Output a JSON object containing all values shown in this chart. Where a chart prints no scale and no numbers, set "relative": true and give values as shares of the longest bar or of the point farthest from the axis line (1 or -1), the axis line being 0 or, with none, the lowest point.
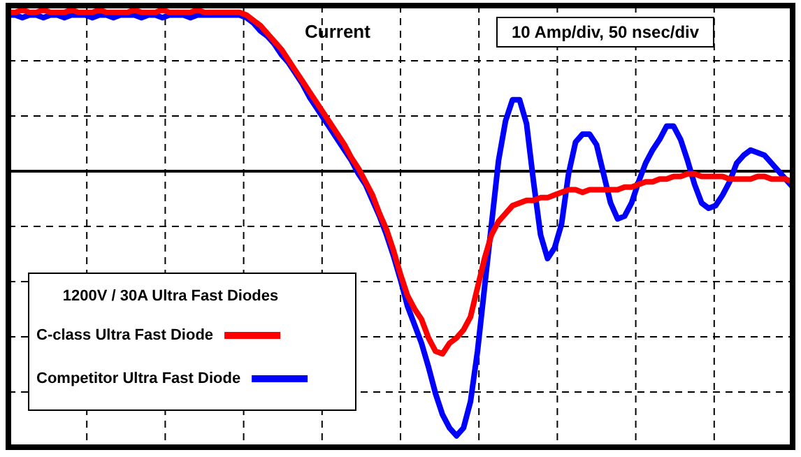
{
  "chart_data": {
    "type": "line",
    "relative": true,
    "grid": true,
    "legend": "bottom left",
    "marker": "none",
    "line_style": "solid",
    "legend_title": "1200V / 30A Ultra Fast Diodes",
    "annotations": [
      "Current",
      "10 Amp/div, 50 nsec/div"
    ],
    "categories": [
      null,
      null,
      null,
      null,
      null,
      null,
      null,
      null,
      null,
      null,
      null,
      null,
      null,
      null,
      null,
      null,
      null,
      null,
      null,
      null,
      null,
      null,
      null,
      null,
      null,
      null,
      null,
      null,
      null,
      null,
      null,
      null,
      null,
      null,
      null,
      null,
      null,
      null,
      null,
      null,
      null,
      null,
      null,
      null,
      null,
      null,
      null,
      null,
      null,
      null,
      null,
      null,
      null,
      null,
      null,
      null,
      null,
      null,
      null,
      null,
      null,
      null,
      null,
      null,
      null,
      null,
      null,
      null,
      null,
      null,
      null,
      null,
      null,
      null,
      null,
      null,
      null,
      null,
      null,
      null,
      null,
      null,
      null,
      null,
      null,
      null,
      null,
      null,
      null,
      null,
      null,
      null,
      null,
      null,
      null,
      null,
      null,
      null,
      null,
      null,
      null,
      null,
      null,
      null,
      null,
      null,
      null,
      null,
      null,
      null,
      null,
      null,
      null
    ],
    "series": [
      {
        "name": "C-class Ultra Fast Diode",
        "color": "#ff0000",
        "values": [
          0.6,
          0.6,
          0.61,
          0.6,
          0.6,
          0.61,
          0.6,
          0.6,
          0.6,
          0.61,
          0.6,
          0.6,
          0.6,
          0.61,
          0.6,
          0.6,
          0.6,
          0.6,
          0.61,
          0.6,
          0.6,
          0.6,
          0.61,
          0.6,
          0.6,
          0.6,
          0.6,
          0.61,
          0.6,
          0.6,
          0.6,
          0.6,
          0.6,
          0.6,
          0.59,
          0.57,
          0.55,
          0.52,
          0.49,
          0.46,
          0.42,
          0.38,
          0.34,
          0.3,
          0.26,
          0.22,
          0.18,
          0.14,
          0.1,
          0.05,
          0.01,
          -0.04,
          -0.09,
          -0.16,
          -0.22,
          -0.3,
          -0.39,
          -0.47,
          -0.52,
          -0.56,
          -0.63,
          -0.68,
          -0.69,
          -0.65,
          -0.63,
          -0.6,
          -0.55,
          -0.44,
          -0.33,
          -0.24,
          -0.19,
          -0.16,
          -0.13,
          -0.12,
          -0.11,
          -0.11,
          -0.1,
          -0.1,
          -0.09,
          -0.08,
          -0.07,
          -0.07,
          -0.08,
          -0.07,
          -0.07,
          -0.07,
          -0.07,
          -0.07,
          -0.06,
          -0.06,
          -0.05,
          -0.04,
          -0.04,
          -0.03,
          -0.03,
          -0.02,
          -0.02,
          -0.01,
          -0.01,
          -0.02,
          -0.02,
          -0.02,
          -0.02,
          -0.03,
          -0.03,
          -0.03,
          -0.03,
          -0.02,
          -0.02,
          -0.03,
          -0.03,
          -0.03,
          -0.04
        ]
      },
      {
        "name": "Competitor Ultra Fast Diode",
        "color": "#0000ff",
        "values": [
          0.59,
          0.59,
          0.58,
          0.59,
          0.59,
          0.58,
          0.59,
          0.59,
          0.58,
          0.59,
          0.59,
          0.59,
          0.58,
          0.59,
          0.59,
          0.58,
          0.59,
          0.59,
          0.59,
          0.58,
          0.59,
          0.59,
          0.58,
          0.59,
          0.59,
          0.59,
          0.58,
          0.59,
          0.59,
          0.59,
          0.59,
          0.59,
          0.59,
          0.59,
          0.58,
          0.56,
          0.53,
          0.51,
          0.48,
          0.44,
          0.41,
          0.37,
          0.33,
          0.28,
          0.24,
          0.2,
          0.16,
          0.12,
          0.08,
          0.04,
          -0.01,
          -0.05,
          -0.11,
          -0.17,
          -0.24,
          -0.32,
          -0.41,
          -0.51,
          -0.58,
          -0.65,
          -0.74,
          -0.84,
          -0.92,
          -0.97,
          -1,
          -0.97,
          -0.87,
          -0.68,
          -0.44,
          -0.2,
          0.04,
          0.19,
          0.27,
          0.27,
          0.18,
          -0.04,
          -0.24,
          -0.33,
          -0.29,
          -0.2,
          -0.01,
          0.11,
          0.14,
          0.14,
          0.1,
          -0.01,
          -0.12,
          -0.18,
          -0.17,
          -0.12,
          -0.04,
          0.03,
          0.08,
          0.12,
          0.17,
          0.17,
          0.12,
          0.04,
          -0.05,
          -0.12,
          -0.14,
          -0.13,
          -0.09,
          -0.04,
          0.03,
          0.06,
          0.08,
          0.07,
          0.06,
          0.03,
          0,
          -0.03,
          -0.06
        ]
      }
    ]
  }
}
